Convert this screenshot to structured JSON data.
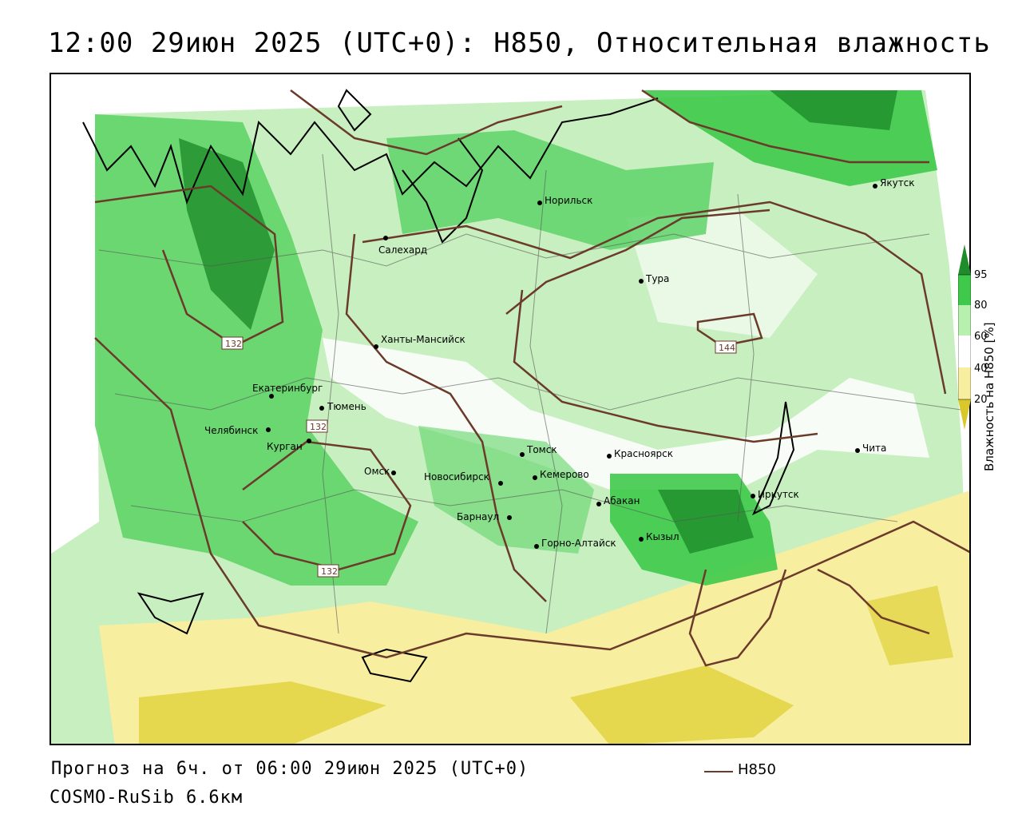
{
  "header": {
    "title": "12:00 29июн 2025 (UTC+0): H850, Относительная влажность"
  },
  "footer": {
    "forecast": "Прогноз на 6ч. от 06:00 29июн 2025 (UTC+0)",
    "model": "COSMO-RuSib 6.6км",
    "line_legend": "H850"
  },
  "colorbar": {
    "title": "Влажность на H850 [%]",
    "ticks": [
      "95",
      "80",
      "60",
      "40",
      "20"
    ],
    "colors": {
      "c95": "#1e8c2a",
      "c80": "#3ec94a",
      "c60": "#b8f0b0",
      "c40": "#ffffff",
      "c20": "#f7eea0",
      "c0": "#d9c82a"
    }
  },
  "colors": {
    "contour": "#6b3a2a",
    "land": "#cfe9c4"
  },
  "cities": [
    {
      "name": "Норильск"
    },
    {
      "name": "Якутск"
    },
    {
      "name": "Салехард"
    },
    {
      "name": "Тура"
    },
    {
      "name": "Ханты-Мансийск"
    },
    {
      "name": "Екатеринбург"
    },
    {
      "name": "Тюмень"
    },
    {
      "name": "Челябинск"
    },
    {
      "name": "Курган"
    },
    {
      "name": "Омск"
    },
    {
      "name": "Новосибирск"
    },
    {
      "name": "Томск"
    },
    {
      "name": "Кемерово"
    },
    {
      "name": "Красноярск"
    },
    {
      "name": "Барнаул"
    },
    {
      "name": "Абакан"
    },
    {
      "name": "Горно-Алтайск"
    },
    {
      "name": "Кызыл"
    },
    {
      "name": "Иркутск"
    },
    {
      "name": "Чита"
    }
  ],
  "contour_labels": [
    "132",
    "132",
    "132",
    "144"
  ]
}
